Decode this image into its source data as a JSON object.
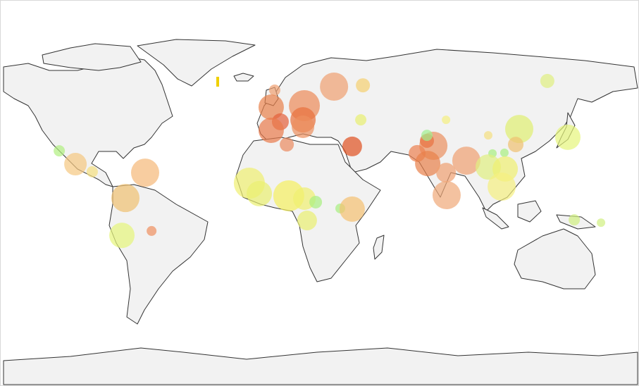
{
  "chart_data": {
    "type": "bubble-map",
    "markers": [
      {
        "lon": 32.9,
        "lat": 57.1,
        "value": 20,
        "color": "#f0a070"
      },
      {
        "lon": 47.7,
        "lat": 57.7,
        "value": 10,
        "color": "#f5d070"
      },
      {
        "lon": 142.2,
        "lat": 59.7,
        "value": 10,
        "color": "#e0f080"
      },
      {
        "lon": 2.5,
        "lat": 55.5,
        "value": 8,
        "color": "#f0a070"
      },
      {
        "lon": 0.7,
        "lat": 47.7,
        "value": 18,
        "color": "#e8804a"
      },
      {
        "lon": 17.7,
        "lat": 48.4,
        "value": 22,
        "color": "#ec8a58"
      },
      {
        "lon": 17.0,
        "lat": 41.9,
        "value": 18,
        "color": "#e8703c"
      },
      {
        "lon": 5.4,
        "lat": 41.0,
        "value": 12,
        "color": "#e4603a"
      },
      {
        "lon": 0.7,
        "lat": 37.1,
        "value": 18,
        "color": "#e97a4c"
      },
      {
        "lon": 17.0,
        "lat": 38.7,
        "value": 16,
        "color": "#ec9060"
      },
      {
        "lon": 8.7,
        "lat": 30.6,
        "value": 10,
        "color": "#eb8a60"
      },
      {
        "lon": 42.2,
        "lat": 29.7,
        "value": 14,
        "color": "#e05020"
      },
      {
        "lon": 46.6,
        "lat": 41.9,
        "value": 8,
        "color": "#e8f070"
      },
      {
        "lon": 90.3,
        "lat": 41.9,
        "value": 6,
        "color": "#f5f080"
      },
      {
        "lon": 127.8,
        "lat": 37.7,
        "value": 20,
        "color": "#e0f070"
      },
      {
        "lon": 152.7,
        "lat": 33.9,
        "value": 18,
        "color": "#e6f57a"
      },
      {
        "lon": 126.0,
        "lat": 30.6,
        "value": 11,
        "color": "#f0c070"
      },
      {
        "lon": 111.9,
        "lat": 34.8,
        "value": 6,
        "color": "#f5e080"
      },
      {
        "lon": 114.1,
        "lat": 26.5,
        "value": 6,
        "color": "#a8f080"
      },
      {
        "lon": 120.2,
        "lat": 26.8,
        "value": 6,
        "color": "#a8f080"
      },
      {
        "lon": 83.8,
        "lat": 30.0,
        "value": 20,
        "color": "#eb9060"
      },
      {
        "lon": 80.5,
        "lat": 32.3,
        "value": 10,
        "color": "#e87040"
      },
      {
        "lon": 80.5,
        "lat": 34.8,
        "value": 8,
        "color": "#a0f090"
      },
      {
        "lon": 75.5,
        "lat": 26.5,
        "value": 12,
        "color": "#ec8050"
      },
      {
        "lon": 80.9,
        "lat": 21.9,
        "value": 18,
        "color": "#e8804a"
      },
      {
        "lon": 90.3,
        "lat": 17.7,
        "value": 14,
        "color": "#f0a070"
      },
      {
        "lon": 90.6,
        "lat": 7.4,
        "value": 20,
        "color": "#f0a878"
      },
      {
        "lon": 100.7,
        "lat": 23.2,
        "value": 20,
        "color": "#f0a070"
      },
      {
        "lon": 111.9,
        "lat": 20.3,
        "value": 18,
        "color": "#e0f080"
      },
      {
        "lon": 120.6,
        "lat": 19.4,
        "value": 18,
        "color": "#f0f070"
      },
      {
        "lon": 118.8,
        "lat": 11.3,
        "value": 20,
        "color": "#f5f080"
      },
      {
        "lon": 156.0,
        "lat": -3.9,
        "value": 8,
        "color": "#d0f080"
      },
      {
        "lon": 169.7,
        "lat": -5.2,
        "value": 6,
        "color": "#d0f080"
      },
      {
        "lon": -107.9,
        "lat": 27.7,
        "value": 8,
        "color": "#b0f080"
      },
      {
        "lon": -99.6,
        "lat": 21.6,
        "value": 16,
        "color": "#f5c880"
      },
      {
        "lon": -91.0,
        "lat": 18.1,
        "value": 8,
        "color": "#f5e080"
      },
      {
        "lon": -63.9,
        "lat": 17.7,
        "value": 20,
        "color": "#f5b878"
      },
      {
        "lon": -74.0,
        "lat": 6.1,
        "value": 20,
        "color": "#f0c070"
      },
      {
        "lon": -75.8,
        "lat": -11.0,
        "value": 18,
        "color": "#e6f57a"
      },
      {
        "lon": -60.6,
        "lat": -9.0,
        "value": 7,
        "color": "#f09060"
      },
      {
        "lon": -10.5,
        "lat": 12.9,
        "value": 22,
        "color": "#f0f070"
      },
      {
        "lon": -5.4,
        "lat": 8.1,
        "value": 18,
        "color": "#eaf070"
      },
      {
        "lon": 9.7,
        "lat": 7.1,
        "value": 22,
        "color": "#f5f060"
      },
      {
        "lon": 17.7,
        "lat": 5.8,
        "value": 16,
        "color": "#f0f070"
      },
      {
        "lon": 23.5,
        "lat": 4.2,
        "value": 9,
        "color": "#a8f080"
      },
      {
        "lon": 19.1,
        "lat": -4.2,
        "value": 14,
        "color": "#eaf070"
      },
      {
        "lon": 36.1,
        "lat": 1.3,
        "value": 7,
        "color": "#a8f080"
      },
      {
        "lon": 42.2,
        "lat": 1.0,
        "value": 18,
        "color": "#f5c070"
      }
    ]
  }
}
